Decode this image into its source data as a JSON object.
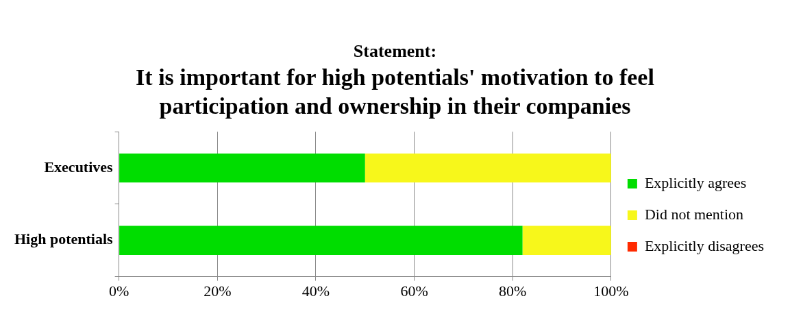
{
  "chart_data": {
    "type": "bar",
    "title": "Statement:",
    "subtitle": "It is important for high potentials' motivation to feel participation and ownership in their companies",
    "orientation": "horizontal",
    "stacked": true,
    "categories": [
      "Executives",
      "High potentials"
    ],
    "series": [
      {
        "name": "Explicitly agrees",
        "color": "#00dd00",
        "values": [
          50,
          82
        ]
      },
      {
        "name": "Did not mention",
        "color": "#f7f71b",
        "values": [
          50,
          18
        ]
      },
      {
        "name": "Explicitly disagrees",
        "color": "#ff2a00",
        "values": [
          0,
          0
        ]
      }
    ],
    "xlim": [
      0,
      100
    ],
    "xticks": [
      {
        "value": 0,
        "label": "0%"
      },
      {
        "value": 20,
        "label": "20%"
      },
      {
        "value": 40,
        "label": "40%"
      },
      {
        "value": 60,
        "label": "60%"
      },
      {
        "value": 80,
        "label": "80%"
      },
      {
        "value": 100,
        "label": "100%"
      }
    ],
    "grid": "x",
    "legend": "right"
  }
}
